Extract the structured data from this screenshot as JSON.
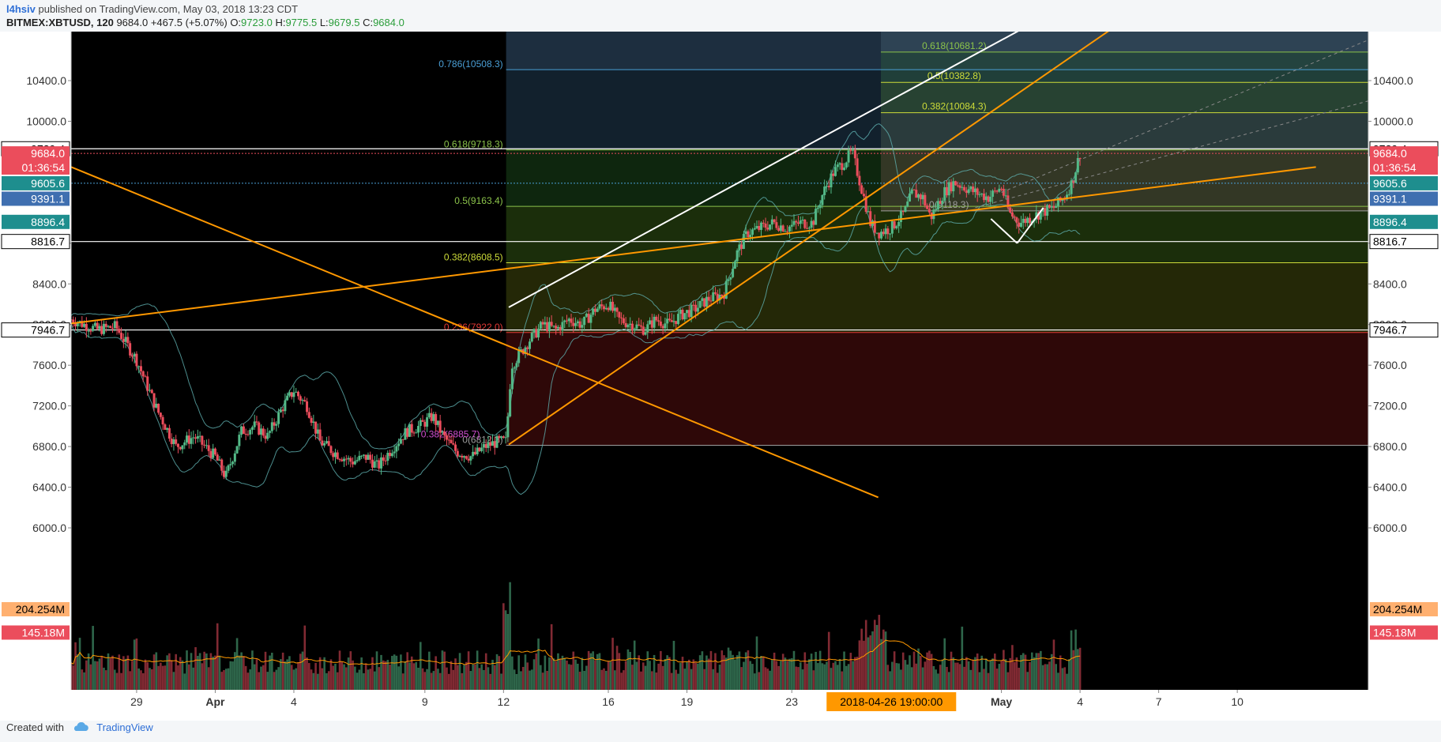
{
  "header": {
    "author": "l4hsiv",
    "published_text": "published on TradingView.com, May 03, 2018 13:23 CDT",
    "symbol": "BITMEX:XBTUSD, 120",
    "last": "9684.0",
    "change": "+467.5 (+5.07%)",
    "o_label": "O:",
    "o": "9723.0",
    "h_label": "H:",
    "h": "9775.5",
    "l_label": "L:",
    "l": "9679.5",
    "c_label": "C:",
    "c": "9684.0"
  },
  "footer": {
    "created": "Created with",
    "brand": "TradingView"
  },
  "colors": {
    "bg": "#000000",
    "up": "#53b987",
    "down": "#eb4d5c",
    "orange": "#ff9800",
    "white": "#ffffff",
    "bb": "#5fb0b0",
    "axis_bg": "#ffffff",
    "axis_text": "#333333"
  },
  "chart_data": {
    "type": "candlestick",
    "title": "BITMEX:XBTUSD, 120",
    "ylim": [
      6100,
      10800
    ],
    "y_ticks": [
      6000,
      6400,
      6800,
      7200,
      7600,
      8000,
      8400,
      8800,
      10000,
      10400
    ],
    "y_tick_labels": [
      "6000.0",
      "6400.0",
      "6800.0",
      "7200.0",
      "7600.0",
      "8000.0",
      "8400.0",
      "8800.0",
      "10000.0",
      "10400.0"
    ],
    "x_tick_labels": [
      {
        "label": "29",
        "day": 0
      },
      {
        "label": "Apr",
        "day": 3
      },
      {
        "label": "4",
        "day": 6
      },
      {
        "label": "9",
        "day": 11
      },
      {
        "label": "12",
        "day": 14
      },
      {
        "label": "16",
        "day": 18
      },
      {
        "label": "19",
        "day": 21
      },
      {
        "label": "23",
        "day": 25
      },
      {
        "label": "May",
        "day": 33
      },
      {
        "label": "4",
        "day": 36
      },
      {
        "label": "7",
        "day": 39
      },
      {
        "label": "10",
        "day": 42
      }
    ],
    "cursor_time_label": "2018-04-26 19:00:00",
    "cursor_day": 28.8,
    "price_path": [
      [
        -2.5,
        8050
      ],
      [
        -1.5,
        7950
      ],
      [
        -0.8,
        7980
      ],
      [
        0,
        7650
      ],
      [
        0.8,
        7150
      ],
      [
        1.5,
        6800
      ],
      [
        2.2,
        6900
      ],
      [
        3,
        6700
      ],
      [
        3.4,
        6500
      ],
      [
        4,
        6950
      ],
      [
        4.5,
        7000
      ],
      [
        5,
        6900
      ],
      [
        5.6,
        7200
      ],
      [
        6,
        7350
      ],
      [
        6.5,
        7200
      ],
      [
        7,
        6850
      ],
      [
        7.5,
        6750
      ],
      [
        8.2,
        6650
      ],
      [
        8.8,
        6700
      ],
      [
        9.2,
        6600
      ],
      [
        9.8,
        6800
      ],
      [
        10.3,
        6950
      ],
      [
        10.8,
        7000
      ],
      [
        11.3,
        7100
      ],
      [
        11.7,
        6900
      ],
      [
        12.2,
        6750
      ],
      [
        12.8,
        6700
      ],
      [
        13.3,
        6800
      ],
      [
        13.8,
        6850
      ],
      [
        14.1,
        6850
      ],
      [
        14.3,
        7600
      ],
      [
        14.6,
        7700
      ],
      [
        15,
        7850
      ],
      [
        15.5,
        8000
      ],
      [
        16,
        7950
      ],
      [
        16.5,
        8050
      ],
      [
        17,
        8000
      ],
      [
        17.5,
        8150
      ],
      [
        18,
        8200
      ],
      [
        18.4,
        8050
      ],
      [
        18.9,
        8000
      ],
      [
        19.4,
        7950
      ],
      [
        19.8,
        8050
      ],
      [
        20.3,
        8000
      ],
      [
        20.8,
        8100
      ],
      [
        21.3,
        8150
      ],
      [
        21.8,
        8250
      ],
      [
        22.4,
        8300
      ],
      [
        22.9,
        8700
      ],
      [
        23.3,
        8900
      ],
      [
        23.8,
        8950
      ],
      [
        24.3,
        9000
      ],
      [
        24.8,
        8950
      ],
      [
        25.3,
        9000
      ],
      [
        25.8,
        9000
      ],
      [
        26.2,
        9300
      ],
      [
        26.6,
        9500
      ],
      [
        27,
        9600
      ],
      [
        27.3,
        9700
      ],
      [
        27.6,
        9400
      ],
      [
        28,
        9000
      ],
      [
        28.3,
        8900
      ],
      [
        28.8,
        8950
      ],
      [
        29.3,
        9100
      ],
      [
        29.6,
        9300
      ],
      [
        30,
        9250
      ],
      [
        30.3,
        9050
      ],
      [
        30.8,
        9300
      ],
      [
        31.2,
        9400
      ],
      [
        31.6,
        9350
      ],
      [
        32,
        9300
      ],
      [
        32.5,
        9250
      ],
      [
        33,
        9350
      ],
      [
        33.3,
        9100
      ],
      [
        33.7,
        9000
      ],
      [
        34.1,
        9050
      ],
      [
        34.5,
        9100
      ],
      [
        35,
        9150
      ],
      [
        35.4,
        9250
      ],
      [
        35.7,
        9400
      ],
      [
        36,
        9684
      ]
    ],
    "last_day": 36,
    "volume": {
      "ylim": [
        0,
        260
      ],
      "labels": [
        "204.254M",
        "145.18M"
      ]
    },
    "fibonacci_levels": [
      {
        "ratio": "0.786",
        "price": 10508.3,
        "label": "0.786(10508.3)",
        "color": "#4a9fd6"
      },
      {
        "ratio": "0.618",
        "price": 9718.3,
        "label": "0.618(9718.3)",
        "color": "#8bc34a"
      },
      {
        "ratio": "0.5",
        "price": 9163.4,
        "label": "0.5(9163.4)",
        "color": "#8bc34a"
      },
      {
        "ratio": "0.382",
        "price": 8608.5,
        "label": "0.382(8608.5)",
        "color": "#cddc39"
      },
      {
        "ratio": "0.236",
        "price": 7922.0,
        "label": "0.236(7922.0)",
        "color": "#e53935"
      },
      {
        "ratio": "0",
        "price": 6812.3,
        "label": "0(6812.3)",
        "color": "#9e9e9e"
      }
    ],
    "fibonacci_extension": [
      {
        "ratio": "0.618",
        "price": 10681.2,
        "label": "0.618(10681.2)",
        "color": "#8bc34a"
      },
      {
        "ratio": "0.5",
        "price": 10382.8,
        "label": "0.5(10382.8)",
        "color": "#cddc39"
      },
      {
        "ratio": "0.382",
        "price": 10084.3,
        "label": "0.382(10084.3)",
        "color": "#cddc39"
      },
      {
        "ratio": "0",
        "price": 9118.3,
        "label": "0(9118.3)",
        "color": "#9e9e9e"
      }
    ],
    "overlap_fib_label": "0.382(6885.7)",
    "horizontal_levels": [
      {
        "price": 9729.4,
        "label": "9729.4",
        "style": "white"
      },
      {
        "price": 8816.7,
        "label": "8816.7",
        "style": "white"
      },
      {
        "price": 7946.7,
        "label": "7946.7",
        "style": "white"
      }
    ],
    "axis_badges": [
      {
        "price": 9684.0,
        "label": "9684.0",
        "bg": "#eb4d5c",
        "fg": "#ffffff"
      },
      {
        "price": 9545,
        "label": "01:36:54",
        "bg": "#eb4d5c",
        "fg": "#ffffff"
      },
      {
        "price": 9390,
        "label": "9605.6",
        "bg": "#1e8e8e",
        "fg": "#ffffff"
      },
      {
        "price": 9238,
        "label": "9391.1",
        "bg": "#3f6fb0",
        "fg": "#ffffff"
      },
      {
        "price": 9010,
        "label": "8896.4",
        "bg": "#1e8e8e",
        "fg": "#ffffff"
      }
    ],
    "trendlines": [
      {
        "color": "#ff9800",
        "from": [
          -2.5,
          9550
        ],
        "to": [
          28.3,
          6300
        ]
      },
      {
        "color": "#ff9800",
        "from": [
          -2.5,
          8010
        ],
        "to": [
          45,
          9550
        ]
      },
      {
        "color": "#ff9800",
        "from": [
          14.2,
          6820
        ],
        "to": [
          38,
          11050
        ]
      },
      {
        "color": "#ffffff",
        "from": [
          14.2,
          8170
        ],
        "to": [
          34.3,
          10980
        ]
      },
      {
        "color": "#ffffff",
        "from": [
          32.6,
          9040
        ],
        "to": [
          33.6,
          8800
        ]
      },
      {
        "color": "#ffffff",
        "from": [
          33.6,
          8800
        ],
        "to": [
          34.6,
          9150
        ]
      }
    ]
  }
}
